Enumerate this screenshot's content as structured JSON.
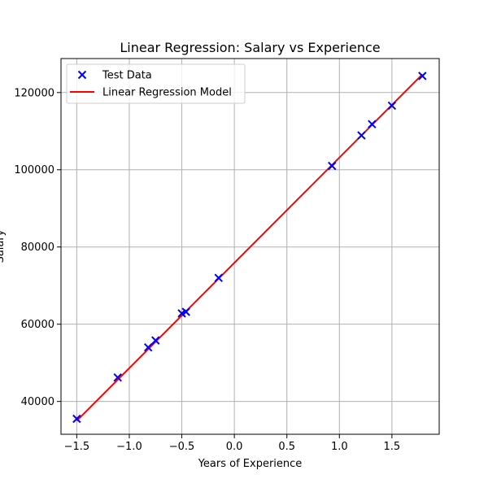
{
  "chart_data": {
    "type": "scatter",
    "title": "Linear Regression: Salary vs Experience",
    "xlabel": "Years of Experience",
    "ylabel": "Salary",
    "xlim": [
      -1.65,
      1.95
    ],
    "ylim": [
      31500,
      128800
    ],
    "x_ticks": [
      -1.5,
      -1.0,
      -0.5,
      0.0,
      0.5,
      1.0,
      1.5
    ],
    "x_tick_labels": [
      "−1.5",
      "−1.0",
      "−0.5",
      "0.0",
      "0.5",
      "1.0",
      "1.5"
    ],
    "y_ticks": [
      40000,
      60000,
      80000,
      100000,
      120000
    ],
    "y_tick_labels": [
      "40000",
      "60000",
      "80000",
      "100000",
      "120000"
    ],
    "grid": true,
    "legend_position": "top-left",
    "series": [
      {
        "name": "Test Data",
        "kind": "scatter",
        "marker": "x",
        "color": "#0000ff",
        "points": [
          [
            -1.5,
            35500
          ],
          [
            -1.11,
            46200
          ],
          [
            -0.82,
            54000
          ],
          [
            -0.75,
            55800
          ],
          [
            -0.5,
            62800
          ],
          [
            -0.46,
            63200
          ],
          [
            -0.15,
            72000
          ],
          [
            0.93,
            101000
          ],
          [
            1.21,
            108900
          ],
          [
            1.31,
            111800
          ],
          [
            1.5,
            116600
          ],
          [
            1.79,
            124300
          ]
        ]
      },
      {
        "name": "Linear Regression Model",
        "kind": "line",
        "color": "#ff0000",
        "points": [
          [
            -1.5,
            35000
          ],
          [
            1.79,
            124700
          ]
        ]
      }
    ]
  }
}
